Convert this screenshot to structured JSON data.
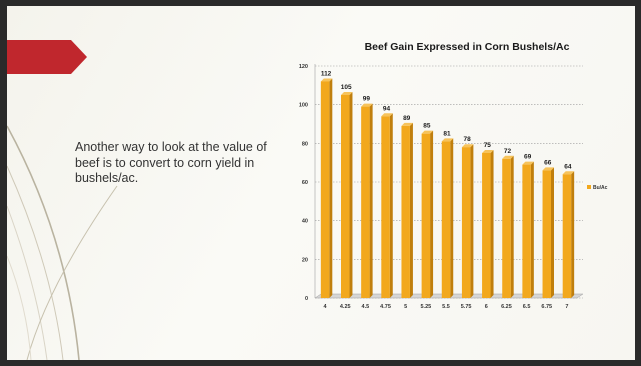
{
  "slide": {
    "body_text": "Another way to look at the value of beef is to convert to corn yield in bushels/ac.",
    "accent_color": "#c0272d"
  },
  "chart_data": {
    "type": "bar",
    "title": "Beef Gain Expressed in Corn Bushels/Ac",
    "xlabel": "",
    "ylabel": "",
    "categories": [
      "4",
      "4.25",
      "4.5",
      "4.75",
      "5",
      "5.25",
      "5.5",
      "5.75",
      "6",
      "6.25",
      "6.5",
      "6.75",
      "7"
    ],
    "series": [
      {
        "name": "Bu/Ac",
        "values": [
          112,
          105,
          99,
          94,
          89,
          85,
          81,
          78,
          75,
          72,
          69,
          66,
          64
        ],
        "color": "#f2a81d"
      }
    ],
    "ylim": [
      0,
      120
    ],
    "yticks": [
      0,
      20,
      40,
      60,
      80,
      100,
      120
    ],
    "grid": true,
    "data_labels": true,
    "legend_position": "right"
  }
}
